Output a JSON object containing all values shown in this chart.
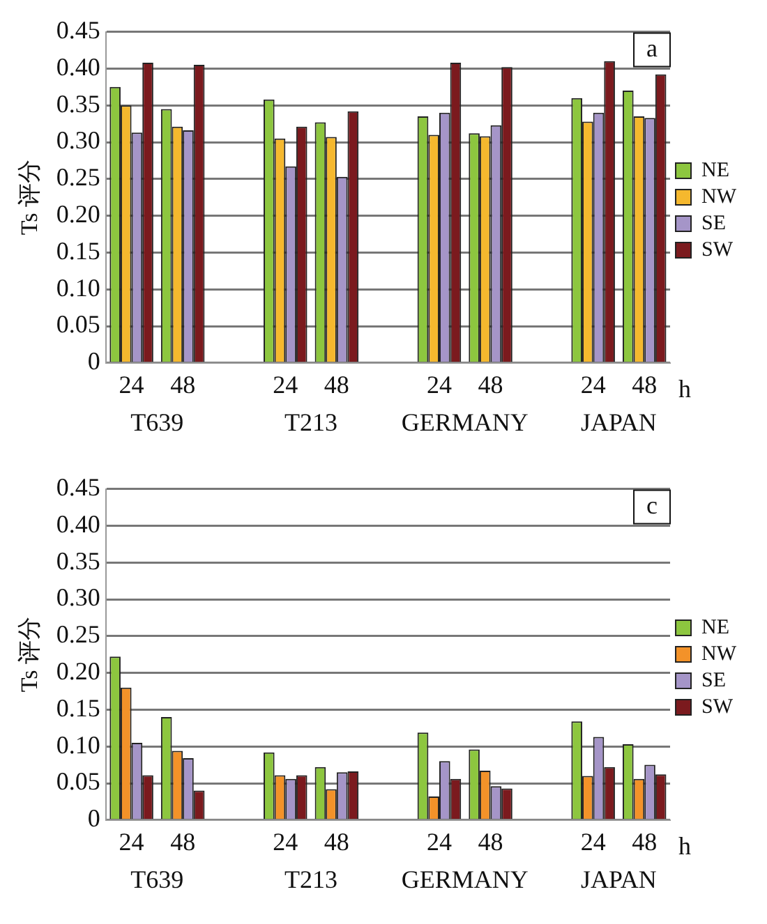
{
  "chart_data": [
    {
      "type": "bar",
      "ylabel": "Ts 评分",
      "categories": [
        "24",
        "48",
        null,
        "24",
        "48",
        null,
        "24",
        "48",
        null,
        "24",
        "48"
      ],
      "series": [
        {
          "name": "NE",
          "color": "#8dc63f",
          "values": [
            0.375,
            0.345,
            null,
            0.358,
            0.327,
            null,
            0.335,
            0.312,
            null,
            0.36,
            0.37
          ]
        },
        {
          "name": "NW",
          "color": "#f5b82e",
          "values": [
            0.35,
            0.321,
            null,
            0.305,
            0.307,
            null,
            0.31,
            0.308,
            null,
            0.328,
            0.335
          ]
        },
        {
          "name": "SE",
          "color": "#a595c8",
          "values": [
            0.313,
            0.316,
            null,
            0.267,
            0.253,
            null,
            0.34,
            0.323,
            null,
            0.34,
            0.333
          ]
        },
        {
          "name": "SW",
          "color": "#7b1a1e",
          "values": [
            0.408,
            0.405,
            null,
            0.321,
            0.342,
            null,
            0.408,
            0.402,
            null,
            0.41,
            0.392
          ]
        }
      ],
      "ylim": [
        0,
        0.45
      ],
      "yticks": [
        {
          "value": 0,
          "label": "0"
        },
        {
          "value": 0.05,
          "label": "0.05"
        },
        {
          "value": 0.1,
          "label": "0.10"
        },
        {
          "value": 0.15,
          "label": "0.15"
        },
        {
          "value": 0.2,
          "label": "0.20"
        },
        {
          "value": 0.25,
          "label": "0.25"
        },
        {
          "value": 0.3,
          "label": "0.30"
        },
        {
          "value": 0.35,
          "label": "0.35"
        },
        {
          "value": 0.4,
          "label": "0.40"
        },
        {
          "value": 0.45,
          "label": "0.45"
        }
      ],
      "grid": "y",
      "legend": "right",
      "annotations": [
        "a",
        "h",
        "T639",
        "T213",
        "GERMANY",
        "JAPAN"
      ]
    },
    {
      "type": "bar",
      "ylabel": "Ts 评分",
      "categories": [
        "24",
        "48",
        null,
        "24",
        "48",
        null,
        "24",
        "48",
        null,
        "24",
        "48"
      ],
      "series": [
        {
          "name": "NE",
          "color": "#8dc63f",
          "values": [
            0.222,
            0.14,
            null,
            0.092,
            0.072,
            null,
            0.119,
            0.096,
            null,
            0.134,
            0.103
          ]
        },
        {
          "name": "NW",
          "color": "#f39229",
          "values": [
            0.18,
            0.094,
            null,
            0.061,
            0.042,
            null,
            0.032,
            0.067,
            null,
            0.06,
            0.056
          ]
        },
        {
          "name": "SE",
          "color": "#a595c8",
          "values": [
            0.105,
            0.084,
            null,
            0.056,
            0.065,
            null,
            0.08,
            0.046,
            null,
            0.113,
            0.075
          ]
        },
        {
          "name": "SW",
          "color": "#7b1a1e",
          "values": [
            0.061,
            0.04,
            null,
            0.061,
            0.066,
            null,
            0.056,
            0.043,
            null,
            0.072,
            0.062
          ]
        }
      ],
      "ylim": [
        0,
        0.45
      ],
      "yticks": [
        {
          "value": 0,
          "label": "0"
        },
        {
          "value": 0.05,
          "label": "0.05"
        },
        {
          "value": 0.1,
          "label": "0.10"
        },
        {
          "value": 0.15,
          "label": "0.15"
        },
        {
          "value": 0.2,
          "label": "0.20"
        },
        {
          "value": 0.25,
          "label": "0.25"
        },
        {
          "value": 0.3,
          "label": "0.30"
        },
        {
          "value": 0.35,
          "label": "0.35"
        },
        {
          "value": 0.4,
          "label": "0.40"
        },
        {
          "value": 0.45,
          "label": "0.45"
        }
      ],
      "grid": "y",
      "legend": "right",
      "annotations": [
        "c",
        "h",
        "T639",
        "T213",
        "GERMANY",
        "JAPAN"
      ]
    }
  ]
}
